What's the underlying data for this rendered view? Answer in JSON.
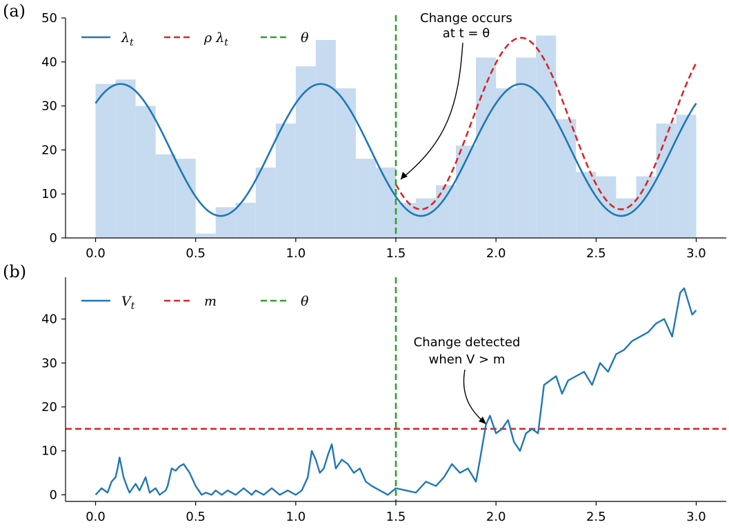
{
  "colors": {
    "blue": "#1f77b4",
    "red": "#d62728",
    "green": "#2ca02c",
    "hist": "#c6dbef"
  },
  "chart_data": [
    {
      "panel": "(a)",
      "type": "line",
      "xlim": [
        -0.15,
        3.15
      ],
      "ylim": [
        0,
        50
      ],
      "xticks": [
        "0.0",
        "0.5",
        "1.0",
        "1.5",
        "2.0",
        "2.5",
        "3.0"
      ],
      "yticks": [
        "0",
        "10",
        "20",
        "30",
        "40",
        "50"
      ],
      "grid": false,
      "legend_position": "top-left",
      "legend": [
        "λ",
        "ρ λ",
        "θ"
      ],
      "legend_sub": [
        "t",
        "t",
        ""
      ],
      "histogram": {
        "bin_width": 0.1,
        "x_start": [
          0.0,
          0.1,
          0.2,
          0.3,
          0.4,
          0.5,
          0.6,
          0.7,
          0.8,
          0.9,
          1.0,
          1.1,
          1.2,
          1.3,
          1.4,
          1.5,
          1.6,
          1.7,
          1.8,
          1.9,
          2.0,
          2.1,
          2.2,
          2.3,
          2.4,
          2.5,
          2.6,
          2.7,
          2.8,
          2.9
        ],
        "counts": [
          35,
          36,
          30,
          19,
          18,
          1,
          7,
          8,
          16,
          26,
          39,
          45,
          34,
          18,
          16,
          8,
          9,
          12,
          21,
          41,
          34,
          41,
          46,
          27,
          15,
          14,
          9,
          14,
          26,
          28
        ]
      },
      "series": [
        {
          "name": "λ_t",
          "formula": "20 + 15 sin(2π(t - 0.125) + π/2)",
          "x_range": [
            0,
            3
          ]
        },
        {
          "name": "ρ λ_t",
          "factor": 1.3,
          "x_range": [
            1.5,
            3
          ]
        }
      ],
      "vline_x": 1.5,
      "annotation": {
        "lines": [
          "Change occurs",
          "at t = θ"
        ],
        "arrow_to": [
          1.5,
          12
        ]
      }
    },
    {
      "panel": "(b)",
      "type": "line",
      "xlim": [
        -0.15,
        3.15
      ],
      "ylim": [
        -1.5,
        49.5
      ],
      "xticks": [
        "0.0",
        "0.5",
        "1.0",
        "1.5",
        "2.0",
        "2.5",
        "3.0"
      ],
      "yticks": [
        "0",
        "10",
        "20",
        "30",
        "40"
      ],
      "grid": false,
      "legend_position": "top-left",
      "legend": [
        "V",
        "m",
        "θ"
      ],
      "legend_sub": [
        "t",
        "",
        ""
      ],
      "threshold_m": 15,
      "vline_x": 1.5,
      "series": [
        {
          "name": "V_t",
          "x": [
            0.0,
            0.03,
            0.06,
            0.08,
            0.1,
            0.11,
            0.12,
            0.14,
            0.16,
            0.17,
            0.2,
            0.22,
            0.25,
            0.27,
            0.3,
            0.32,
            0.35,
            0.36,
            0.38,
            0.4,
            0.42,
            0.44,
            0.47,
            0.5,
            0.53,
            0.55,
            0.58,
            0.6,
            0.63,
            0.66,
            0.7,
            0.74,
            0.78,
            0.8,
            0.84,
            0.88,
            0.92,
            0.96,
            1.0,
            1.03,
            1.06,
            1.08,
            1.1,
            1.12,
            1.14,
            1.16,
            1.18,
            1.2,
            1.23,
            1.26,
            1.29,
            1.32,
            1.35,
            1.38,
            1.42,
            1.46,
            1.5,
            1.55,
            1.6,
            1.65,
            1.7,
            1.74,
            1.78,
            1.82,
            1.86,
            1.9,
            1.92,
            1.95,
            1.97,
            2.0,
            2.03,
            2.06,
            2.09,
            2.12,
            2.15,
            2.18,
            2.21,
            2.24,
            2.27,
            2.3,
            2.33,
            2.36,
            2.4,
            2.44,
            2.48,
            2.52,
            2.56,
            2.6,
            2.64,
            2.68,
            2.72,
            2.76,
            2.8,
            2.84,
            2.88,
            2.9,
            2.92,
            2.94,
            2.96,
            2.98,
            3.0
          ],
          "values": [
            0,
            1.5,
            0.5,
            3,
            4,
            6,
            8.5,
            4,
            1.5,
            0.5,
            2.5,
            1,
            4,
            0.5,
            1.5,
            0,
            1,
            2,
            6,
            5.5,
            6.5,
            7,
            5,
            2,
            0,
            0.5,
            0,
            1,
            0,
            1,
            0,
            1.5,
            0,
            1,
            0,
            1.5,
            0,
            1,
            0,
            1,
            4,
            10,
            8,
            5,
            6,
            9,
            11.5,
            6,
            8,
            7,
            5,
            6,
            3,
            2,
            1,
            0,
            1.5,
            1,
            0.5,
            3,
            2,
            4,
            7,
            5,
            6,
            3,
            8,
            16,
            18,
            14,
            15,
            17,
            12,
            10,
            14,
            15,
            14,
            25,
            26,
            27,
            23,
            26,
            27,
            28,
            25,
            30,
            28,
            32,
            33,
            35,
            36,
            37,
            39,
            40,
            36,
            41,
            46,
            47,
            44,
            41,
            42
          ]
        }
      ],
      "annotation": {
        "lines": [
          "Change detected",
          "when V > m"
        ],
        "arrow_to": [
          1.95,
          16
        ]
      }
    }
  ]
}
